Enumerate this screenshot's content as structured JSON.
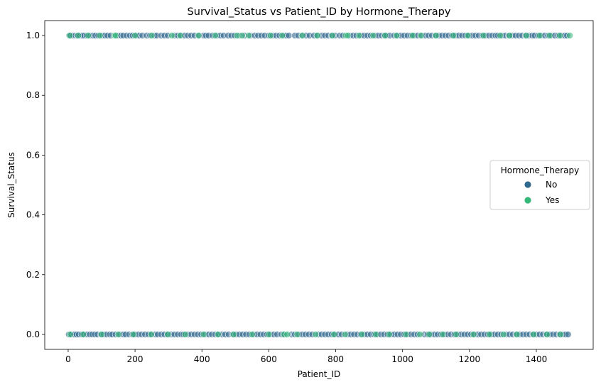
{
  "chart_data": {
    "type": "scatter",
    "title": "Survival_Status vs Patient_ID by Hormone_Therapy",
    "xlabel": "Patient_ID",
    "ylabel": "Survival_Status",
    "xlim": [
      -70,
      1570
    ],
    "ylim": [
      -0.05,
      1.05
    ],
    "x_ticks": [
      0,
      200,
      400,
      600,
      800,
      1000,
      1200,
      1400
    ],
    "x_tick_labels": [
      "0",
      "200",
      "400",
      "600",
      "800",
      "1000",
      "1200",
      "1400"
    ],
    "y_ticks": [
      0.0,
      0.2,
      0.4,
      0.6,
      0.8,
      1.0
    ],
    "y_tick_labels": [
      "0.0",
      "0.2",
      "0.4",
      "0.6",
      "0.8",
      "1.0"
    ],
    "grid": false,
    "legend": {
      "title": "Hormone_Therapy",
      "placement": "center-right",
      "entries": [
        "No",
        "Yes"
      ]
    },
    "colors": {
      "No": "#30688e",
      "Yes": "#35b779"
    },
    "series": [
      {
        "name": "No",
        "y1_x": [
          3,
          8,
          15,
          22,
          27,
          35,
          42,
          48,
          55,
          66,
          75,
          82,
          90,
          102,
          110,
          118,
          127,
          148,
          158,
          165,
          175,
          185,
          193,
          205,
          212,
          222,
          235,
          245,
          258,
          265,
          278,
          288,
          298,
          318,
          328,
          338,
          348,
          358,
          368,
          378,
          392,
          405,
          412,
          420,
          432,
          445,
          455,
          465,
          478,
          488,
          498,
          512,
          528,
          545,
          558,
          568,
          578,
          588,
          600,
          612,
          622,
          632,
          645,
          652,
          660,
          678,
          688,
          702,
          712,
          722,
          735,
          745,
          758,
          768,
          778,
          788,
          798,
          812,
          822,
          842,
          852,
          862,
          875,
          885,
          895,
          905,
          918,
          928,
          938,
          945,
          952,
          962,
          975,
          985,
          995,
          1005,
          1015,
          1025,
          1035,
          1045,
          1058,
          1068,
          1078,
          1088,
          1098,
          1108,
          1118,
          1128,
          1138,
          1148,
          1158,
          1168,
          1178,
          1188,
          1198,
          1208,
          1218,
          1228,
          1238,
          1248,
          1258,
          1268,
          1278,
          1285,
          1298,
          1308,
          1318,
          1328,
          1338,
          1348,
          1358,
          1368,
          1378,
          1388,
          1395,
          1405,
          1415,
          1425,
          1435,
          1445,
          1455,
          1465,
          1475,
          1485,
          1492
        ],
        "y0_x": [
          2,
          10,
          18,
          25,
          32,
          40,
          48,
          56,
          65,
          72,
          80,
          88,
          98,
          106,
          115,
          125,
          132,
          142,
          155,
          165,
          172,
          182,
          192,
          200,
          210,
          220,
          230,
          240,
          250,
          260,
          268,
          278,
          288,
          298,
          308,
          318,
          328,
          338,
          345,
          358,
          368,
          378,
          388,
          398,
          410,
          420,
          430,
          440,
          450,
          460,
          470,
          480,
          492,
          502,
          512,
          522,
          532,
          542,
          555,
          565,
          575,
          585,
          595,
          605,
          615,
          625,
          638,
          648,
          668,
          678,
          690,
          700,
          710,
          720,
          730,
          748,
          758,
          768,
          778,
          788,
          798,
          808,
          818,
          835,
          845,
          855,
          865,
          875,
          885,
          895,
          905,
          915,
          925,
          935,
          945,
          955,
          965,
          975,
          985,
          995,
          1005,
          1015,
          1025,
          1035,
          1045,
          1065,
          1075,
          1085,
          1095,
          1105,
          1115,
          1125,
          1135,
          1145,
          1155,
          1165,
          1175,
          1185,
          1195,
          1205,
          1215,
          1225,
          1235,
          1245,
          1255,
          1265,
          1275,
          1285,
          1295,
          1310,
          1320,
          1330,
          1340,
          1350,
          1360,
          1370,
          1380,
          1390,
          1400,
          1410,
          1420,
          1430,
          1440,
          1450,
          1460,
          1470,
          1480,
          1488,
          1495
        ]
      },
      {
        "name": "Yes",
        "y1_x": [
          5,
          30,
          60,
          95,
          138,
          142,
          200,
          250,
          310,
          335,
          390,
          440,
          505,
          520,
          540,
          605,
          640,
          700,
          745,
          790,
          830,
          836,
          870,
          912,
          948,
          982,
          1030,
          1055,
          1100,
          1152,
          1195,
          1242,
          1292,
          1320,
          1370,
          1410,
          1440,
          1470,
          1500
        ],
        "y0_x": [
          6,
          45,
          100,
          150,
          195,
          248,
          298,
          350,
          405,
          448,
          495,
          550,
          600,
          645,
          655,
          685,
          740,
          795,
          828,
          878,
          920,
          960,
          1010,
          1052,
          1080,
          1120,
          1160,
          1212,
          1260,
          1302,
          1342,
          1392,
          1432,
          1472
        ]
      }
    ]
  }
}
